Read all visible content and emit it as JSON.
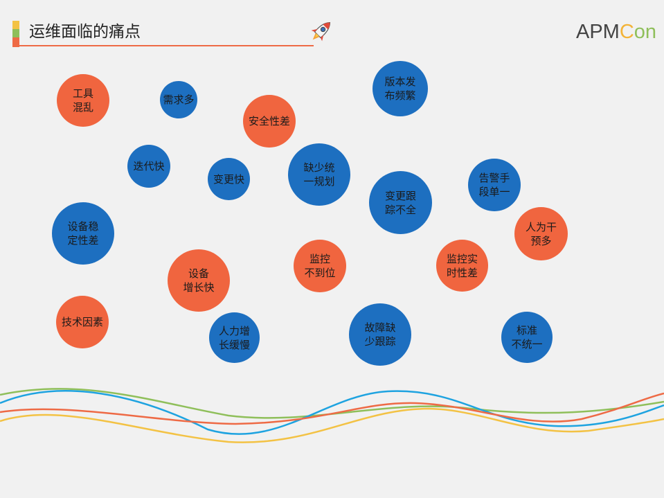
{
  "header": {
    "title": "运维面临的痛点",
    "logo": {
      "part1": "APM",
      "part2": "C",
      "part3": "on"
    }
  },
  "colors": {
    "blue": "#1d6fc0",
    "orange": "#f0653f",
    "wave_green": "#8fbf5a",
    "wave_blue": "#1ea3e0",
    "wave_orange": "#ee6a45",
    "wave_yellow": "#f3c244"
  },
  "icons": [
    "rocket-icon"
  ],
  "bubbles": [
    {
      "id": "tools-chaos",
      "text": "工具\n混乱",
      "color": "orange"
    },
    {
      "id": "many-demands",
      "text": "需求多",
      "color": "blue"
    },
    {
      "id": "security-poor",
      "text": "安全性差",
      "color": "orange"
    },
    {
      "id": "frequent-release",
      "text": "版本发\n布频繁",
      "color": "blue"
    },
    {
      "id": "fast-iteration",
      "text": "迭代快",
      "color": "blue"
    },
    {
      "id": "fast-change",
      "text": "变更快",
      "color": "blue"
    },
    {
      "id": "lack-planning",
      "text": "缺少统\n一规划",
      "color": "blue"
    },
    {
      "id": "change-tracking",
      "text": "变更跟\n踪不全",
      "color": "blue"
    },
    {
      "id": "alert-single",
      "text": "告警手\n段单一",
      "color": "blue"
    },
    {
      "id": "human-intervention",
      "text": "人为干\n预多",
      "color": "orange"
    },
    {
      "id": "device-stability",
      "text": "设备稳\n定性差",
      "color": "blue"
    },
    {
      "id": "device-growth",
      "text": "设备\n增长快",
      "color": "orange"
    },
    {
      "id": "monitor-incomplete",
      "text": "监控\n不到位",
      "color": "orange"
    },
    {
      "id": "monitor-realtime",
      "text": "监控实\n时性差",
      "color": "orange"
    },
    {
      "id": "tech-factors",
      "text": "技术因素",
      "color": "orange"
    },
    {
      "id": "slow-staffing",
      "text": "人力增\n长缓慢",
      "color": "blue"
    },
    {
      "id": "fault-tracking",
      "text": "故障缺\n少跟踪",
      "color": "blue"
    },
    {
      "id": "non-standard",
      "text": "标准\n不统一",
      "color": "blue"
    }
  ]
}
